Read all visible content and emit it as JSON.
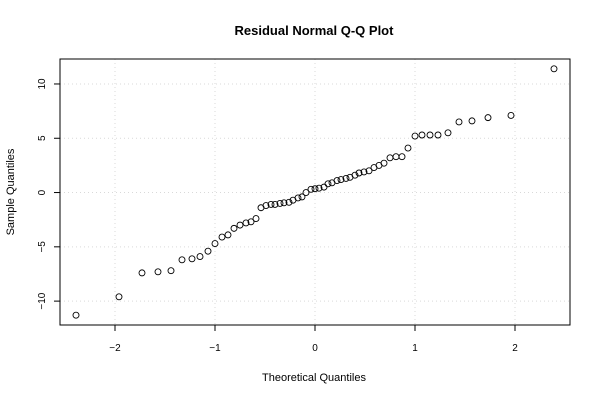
{
  "chart_data": {
    "type": "scatter",
    "title": "Residual Normal Q-Q Plot",
    "xlabel": "Theoretical Quantiles",
    "ylabel": "Sample Quantiles",
    "xlim": [
      -2.55,
      2.55
    ],
    "ylim": [
      -12.2,
      12.3
    ],
    "xticks": [
      -2,
      -1,
      0,
      1,
      2
    ],
    "yticks": [
      -10,
      -5,
      0,
      5,
      10
    ],
    "xtick_labels": [
      "−2",
      "−1",
      "0",
      "1",
      "2"
    ],
    "ytick_labels": [
      "−10",
      "−5",
      "0",
      "5",
      "10"
    ],
    "grid": true,
    "series": [
      {
        "points": [
          [
            -2.39,
            -11.3
          ],
          [
            -1.96,
            -9.6
          ],
          [
            -1.73,
            -7.4
          ],
          [
            -1.57,
            -7.3
          ],
          [
            -1.44,
            -7.2
          ],
          [
            -1.33,
            -6.2
          ],
          [
            -1.23,
            -6.1
          ],
          [
            -1.15,
            -5.9
          ],
          [
            -1.07,
            -5.4
          ],
          [
            -1.0,
            -4.7
          ],
          [
            -0.93,
            -4.1
          ],
          [
            -0.87,
            -3.9
          ],
          [
            -0.81,
            -3.3
          ],
          [
            -0.75,
            -3.0
          ],
          [
            -0.69,
            -2.8
          ],
          [
            -0.64,
            -2.7
          ],
          [
            -0.59,
            -2.4
          ],
          [
            -0.54,
            -1.4
          ],
          [
            -0.49,
            -1.2
          ],
          [
            -0.44,
            -1.1
          ],
          [
            -0.4,
            -1.1
          ],
          [
            -0.35,
            -1.0
          ],
          [
            -0.31,
            -0.95
          ],
          [
            -0.26,
            -0.9
          ],
          [
            -0.22,
            -0.7
          ],
          [
            -0.17,
            -0.5
          ],
          [
            -0.13,
            -0.4
          ],
          [
            -0.09,
            0.0
          ],
          [
            -0.04,
            0.3
          ],
          [
            0.0,
            0.35
          ],
          [
            0.04,
            0.4
          ],
          [
            0.09,
            0.5
          ],
          [
            0.13,
            0.8
          ],
          [
            0.17,
            0.9
          ],
          [
            0.22,
            1.1
          ],
          [
            0.26,
            1.2
          ],
          [
            0.31,
            1.3
          ],
          [
            0.35,
            1.4
          ],
          [
            0.4,
            1.6
          ],
          [
            0.44,
            1.8
          ],
          [
            0.49,
            1.9
          ],
          [
            0.54,
            2.0
          ],
          [
            0.59,
            2.3
          ],
          [
            0.64,
            2.5
          ],
          [
            0.69,
            2.7
          ],
          [
            0.75,
            3.2
          ],
          [
            0.81,
            3.3
          ],
          [
            0.87,
            3.3
          ],
          [
            0.93,
            4.1
          ],
          [
            1.0,
            5.2
          ],
          [
            1.07,
            5.3
          ],
          [
            1.15,
            5.3
          ],
          [
            1.23,
            5.3
          ],
          [
            1.33,
            5.5
          ],
          [
            1.44,
            6.5
          ],
          [
            1.57,
            6.6
          ],
          [
            1.73,
            6.9
          ],
          [
            1.96,
            7.1
          ],
          [
            2.39,
            11.4
          ]
        ]
      }
    ]
  }
}
